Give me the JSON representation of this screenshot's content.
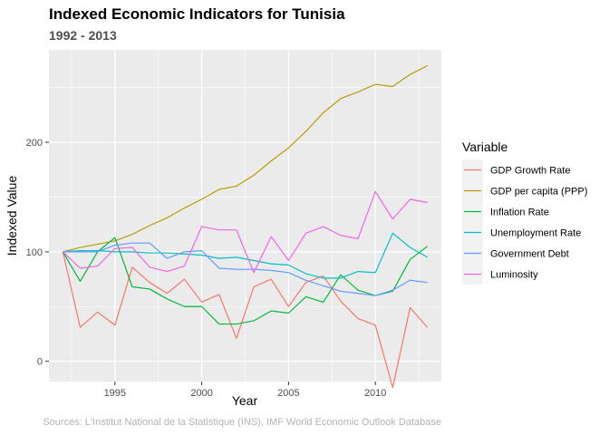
{
  "chart_data": {
    "type": "line",
    "title": "Indexed Economic Indicators for Tunisia",
    "subtitle": "1992 - 2013",
    "xlabel": "Year",
    "ylabel": "Indexed Value",
    "caption": "Sources: L'Institut National de la Statistique (INS), IMF World Economic Outlook Database",
    "xlim": [
      1991.2,
      2013.8
    ],
    "ylim": [
      -18.5,
      284.5
    ],
    "x_ticks": [
      1995,
      2000,
      2005,
      2010
    ],
    "y_ticks": [
      0,
      100,
      200
    ],
    "grid": true,
    "legend_title": "Variable",
    "legend_position": "right",
    "x": [
      1992,
      1993,
      1994,
      1995,
      1996,
      1997,
      1998,
      1999,
      2000,
      2001,
      2002,
      2003,
      2004,
      2005,
      2006,
      2007,
      2008,
      2009,
      2010,
      2011,
      2012,
      2013
    ],
    "series": [
      {
        "name": "GDP Growth Rate",
        "color": "#F8766D",
        "values": [
          100,
          31,
          45,
          33,
          86,
          72,
          62,
          75,
          54,
          61,
          21,
          68,
          75,
          50,
          72,
          78,
          55,
          39,
          33,
          -24,
          49,
          31
        ]
      },
      {
        "name": "GDP per capita (PPP)",
        "color": "#B79F00",
        "values": [
          100,
          104,
          107,
          110,
          116,
          124,
          131,
          140,
          148,
          157,
          160,
          170,
          183,
          195,
          210,
          227,
          240,
          246,
          253,
          251,
          262,
          270
        ]
      },
      {
        "name": "Inflation Rate",
        "color": "#00BA38",
        "values": [
          100,
          73,
          100,
          113,
          68,
          66,
          57,
          50,
          50,
          34,
          34,
          37,
          46,
          44,
          59,
          54,
          79,
          65,
          60,
          64,
          93,
          105
        ]
      },
      {
        "name": "Unemployment Rate",
        "color": "#00BFC4",
        "values": [
          100,
          101,
          101,
          100,
          100,
          99,
          99,
          98,
          97,
          94,
          95,
          92,
          89,
          88,
          80,
          76,
          76,
          82,
          81,
          117,
          104,
          95
        ]
      },
      {
        "name": "Government Debt",
        "color": "#619CFF",
        "values": [
          100,
          100,
          100,
          106,
          108,
          108,
          94,
          100,
          101,
          85,
          84,
          84,
          83,
          81,
          74,
          69,
          64,
          62,
          60,
          65,
          74,
          72
        ]
      },
      {
        "name": "Luminosity",
        "color": "#F564E3",
        "values": [
          100,
          85,
          87,
          103,
          104,
          86,
          82,
          87,
          123,
          120,
          120,
          81,
          114,
          92,
          117,
          123,
          115,
          112,
          155,
          130,
          148,
          145
        ]
      }
    ]
  }
}
